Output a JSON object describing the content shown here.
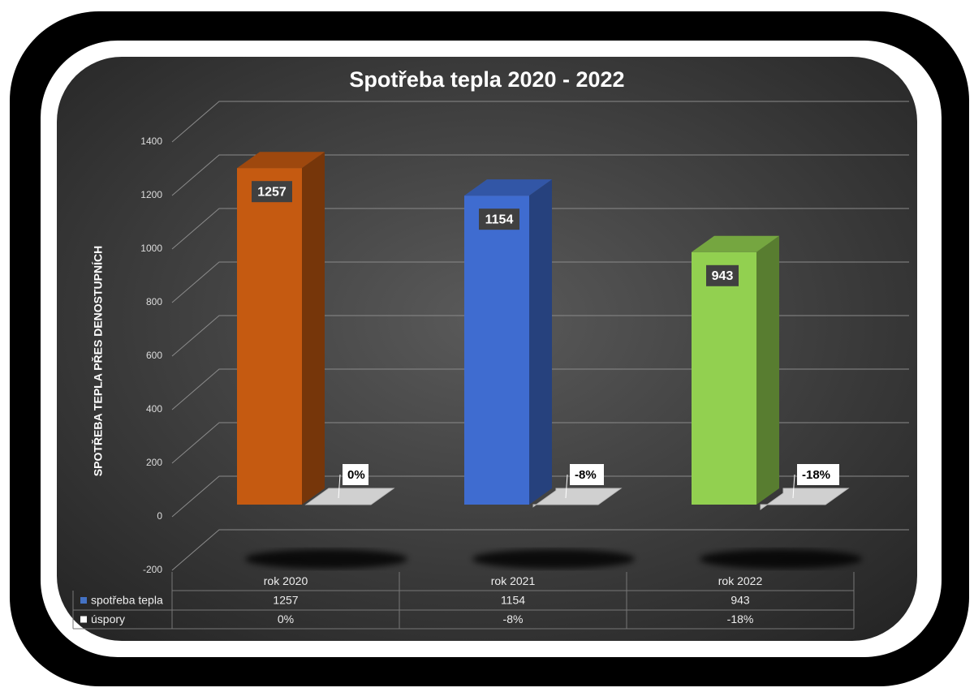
{
  "chart_data": {
    "type": "bar3d",
    "title": "Spotřeba tepla 2020 - 2022",
    "y_label": "SPOTŘEBA TEPLA PŘES DENOSTUPNÍCH",
    "categories": [
      "rok 2020",
      "rok 2021",
      "rok 2022"
    ],
    "series": [
      {
        "name": "spotřeba tepla",
        "color": "#4472c4",
        "point_colors": [
          "#c55a11",
          "#3f6cd0",
          "#92d050"
        ],
        "values": [
          1257,
          1154,
          943
        ]
      },
      {
        "name": "úspory",
        "color": "#ffffff",
        "values": [
          0,
          -8,
          -18
        ],
        "value_labels": [
          "0%",
          "-8%",
          "-18%"
        ]
      }
    ],
    "ylim": [
      -200,
      1400
    ],
    "yticks": [
      -200,
      0,
      200,
      400,
      600,
      800,
      1000,
      1200,
      1400
    ],
    "grid": true,
    "data_table": true
  }
}
